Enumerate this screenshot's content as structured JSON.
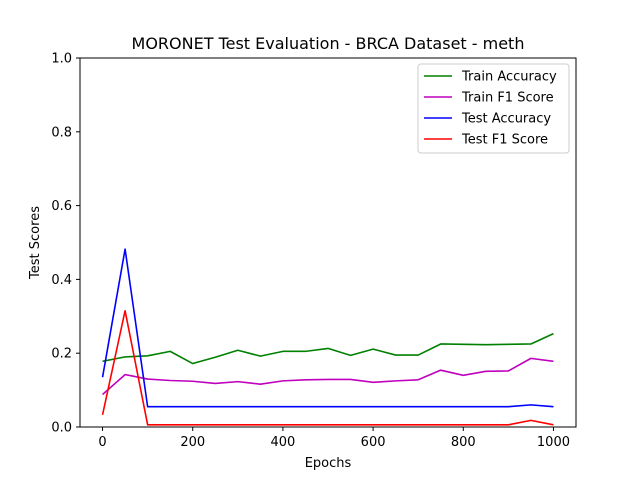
{
  "chart_data": {
    "type": "line",
    "title": "MORONET Test Evaluation - BRCA Dataset - meth",
    "xlabel": "Epochs",
    "ylabel": "Test Scores",
    "xlim": [
      -50,
      1050
    ],
    "ylim": [
      0,
      1.0
    ],
    "xticks": [
      0,
      200,
      400,
      600,
      800,
      1000
    ],
    "yticks": [
      0.0,
      0.2,
      0.4,
      0.6,
      0.8,
      1.0
    ],
    "ytick_labels": [
      "0.0",
      "0.2",
      "0.4",
      "0.6",
      "0.8",
      "1.0"
    ],
    "grid": false,
    "legend_position": "top-right",
    "x": [
      0,
      50,
      100,
      150,
      200,
      250,
      300,
      350,
      400,
      450,
      500,
      550,
      600,
      650,
      700,
      750,
      800,
      850,
      900,
      950,
      1000
    ],
    "series": [
      {
        "name": "Train Accuracy",
        "color": "#008000",
        "values": [
          0.178,
          0.19,
          0.193,
          0.205,
          0.172,
          0.189,
          0.208,
          0.192,
          0.205,
          0.205,
          0.213,
          0.194,
          0.211,
          0.195,
          0.195,
          0.225,
          0.224,
          0.223,
          0.224,
          0.225,
          0.253
        ]
      },
      {
        "name": "Train F1 Score",
        "color": "#bf00bf",
        "values": [
          0.088,
          0.142,
          0.13,
          0.126,
          0.124,
          0.118,
          0.123,
          0.116,
          0.125,
          0.128,
          0.129,
          0.129,
          0.121,
          0.125,
          0.128,
          0.154,
          0.14,
          0.151,
          0.152,
          0.186,
          0.178
        ]
      },
      {
        "name": "Test Accuracy",
        "color": "#0000ff",
        "values": [
          0.135,
          0.482,
          0.055,
          0.055,
          0.055,
          0.055,
          0.055,
          0.055,
          0.055,
          0.055,
          0.055,
          0.055,
          0.055,
          0.055,
          0.055,
          0.055,
          0.055,
          0.055,
          0.055,
          0.06,
          0.055
        ]
      },
      {
        "name": "Test F1 Score",
        "color": "#ff0000",
        "values": [
          0.033,
          0.315,
          0.006,
          0.006,
          0.006,
          0.006,
          0.006,
          0.006,
          0.006,
          0.006,
          0.006,
          0.006,
          0.006,
          0.006,
          0.006,
          0.006,
          0.006,
          0.006,
          0.006,
          0.018,
          0.006
        ]
      }
    ]
  }
}
